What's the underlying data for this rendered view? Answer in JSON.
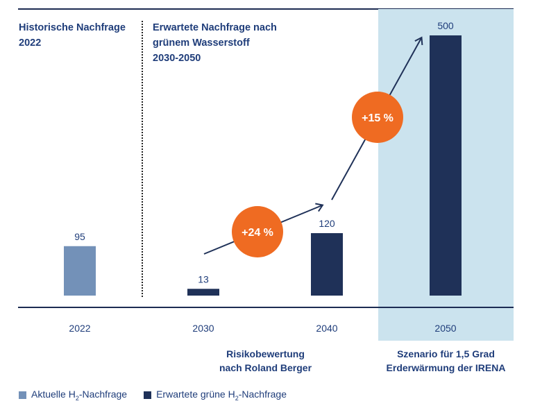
{
  "headings": {
    "historic": [
      "Historische Nachfrage",
      "2022"
    ],
    "expected": [
      "Erwartete Nachfrage nach",
      "grünem Wasserstoff",
      "2030-2050"
    ]
  },
  "footnotes": {
    "roland_berger": [
      "Risikobewertung",
      "nach Roland Berger"
    ],
    "irena": [
      "Szenario für 1,5 Grad",
      "Erderwärmung der IRENA"
    ]
  },
  "growth_badges": [
    {
      "label": "+24 %"
    },
    {
      "label": "+15 %"
    }
  ],
  "legend": [
    {
      "label": "Aktuelle H",
      "sub": "2",
      "suffix": "-Nachfrage",
      "color": "#7391b8"
    },
    {
      "label": "Erwartete grüne H",
      "sub": "2",
      "suffix": "-Nachfrage",
      "color": "#1f3158"
    }
  ],
  "colors": {
    "historic_bar": "#7391b8",
    "expected_bar": "#1f3158",
    "badge": "#ef6b22",
    "highlight": "#cbe3ee",
    "text": "#1f3d7a"
  },
  "chart_data": {
    "type": "bar",
    "categories": [
      "2022",
      "2030",
      "2040",
      "2050"
    ],
    "series": [
      {
        "name": "Aktuelle H2-Nachfrage",
        "values": [
          95,
          null,
          null,
          null
        ]
      },
      {
        "name": "Erwartete grüne H2-Nachfrage",
        "values": [
          null,
          13,
          120,
          500
        ]
      }
    ],
    "value_labels": [
      "95",
      "13",
      "120",
      "500"
    ],
    "ylim": [
      0,
      500
    ],
    "grid": false,
    "legend_position": "bottom-left",
    "highlighted_category": "2050"
  }
}
